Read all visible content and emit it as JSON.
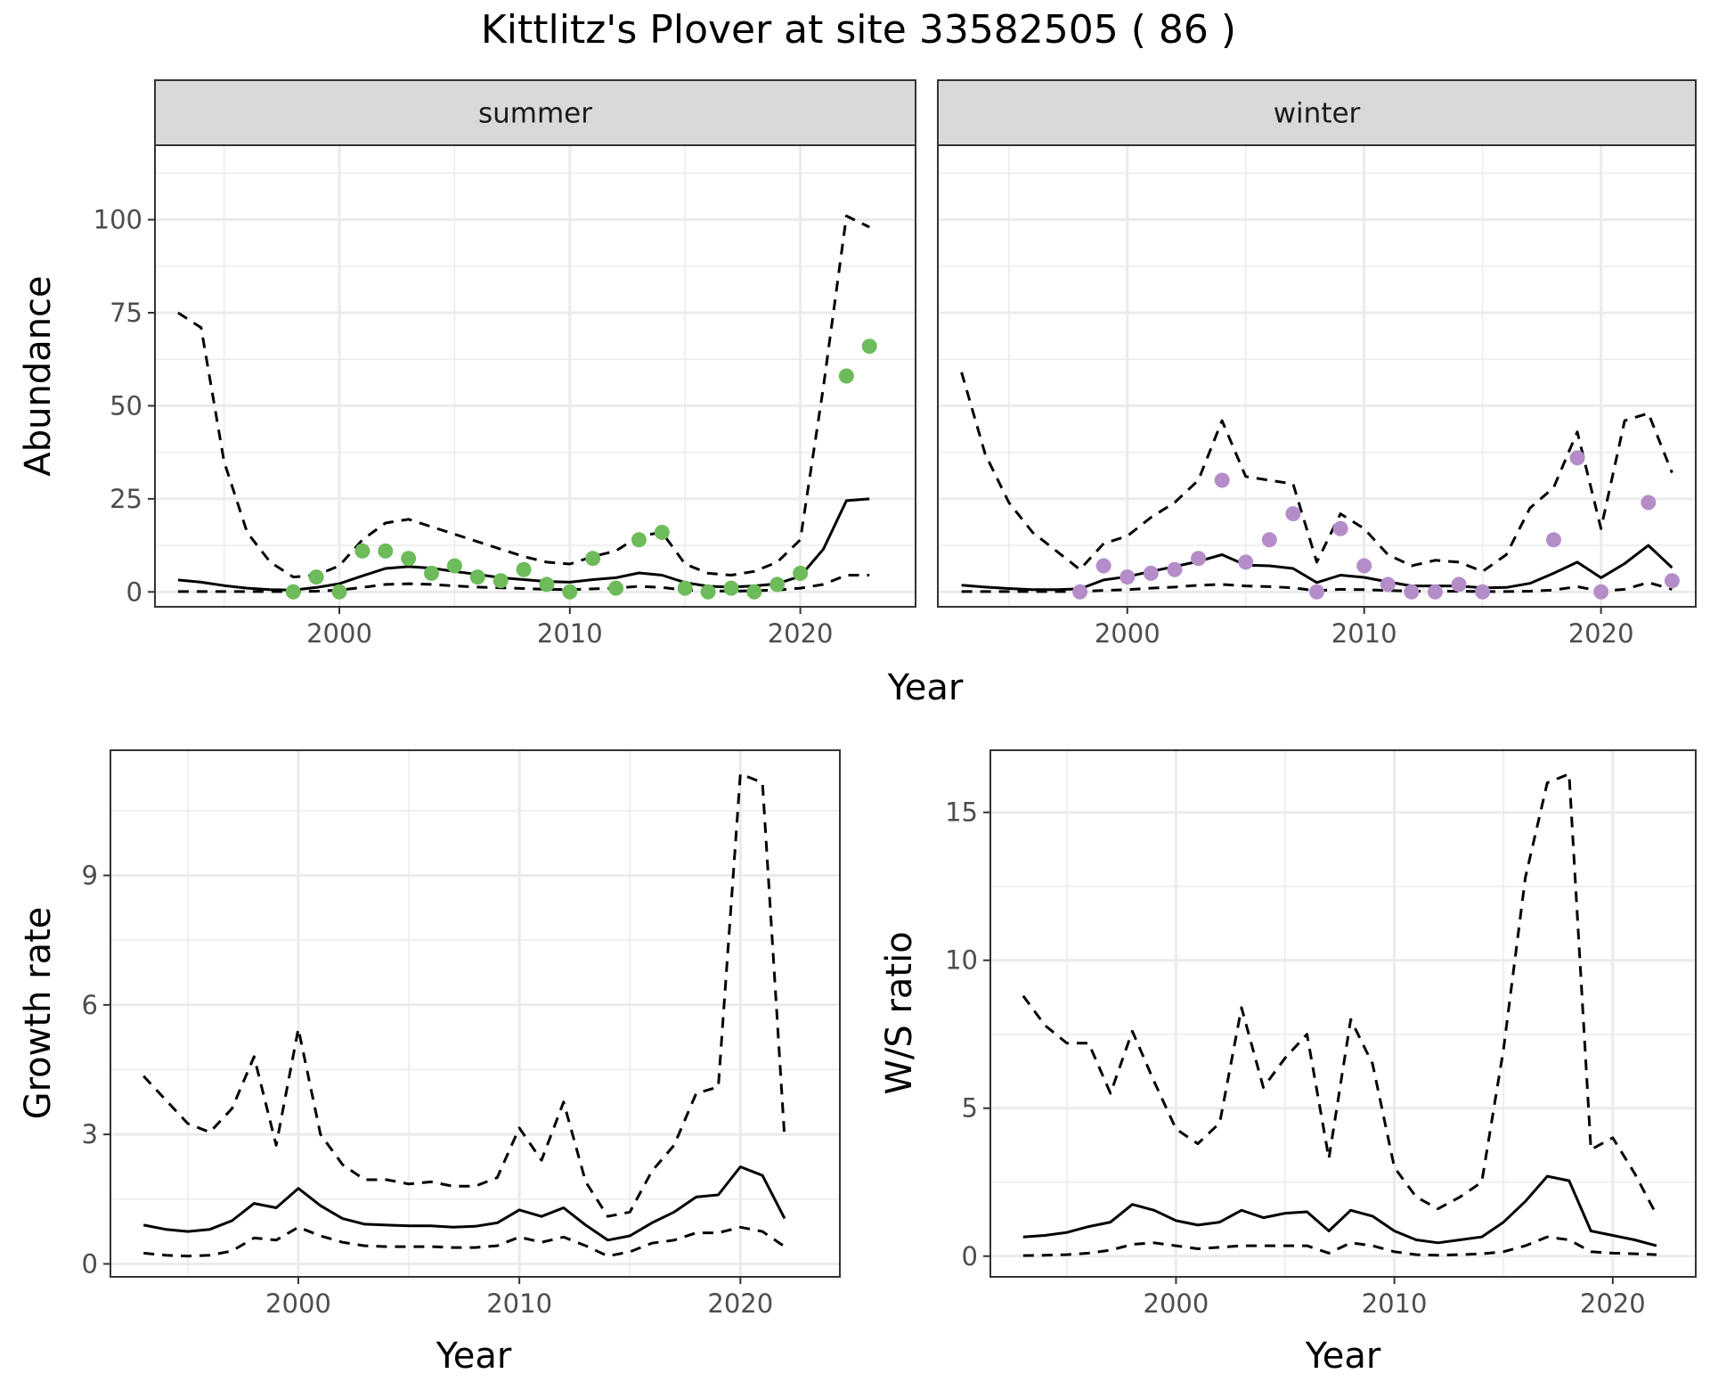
{
  "title": "Kittlitz's Plover at site 33582505 ( 86 )",
  "colors": {
    "summer_points": "#6dbb5a",
    "winter_points": "#b48dc8",
    "lines": "#000000",
    "strip_fill": "#d9d9d9",
    "grid": "#ebebeb"
  },
  "chart_data": [
    {
      "id": "abundance",
      "type": "line",
      "ylabel": "Abundance",
      "xlabel": "Year",
      "ylim": [
        -4,
        120
      ],
      "yticks": [
        0,
        25,
        50,
        75,
        100
      ],
      "xticks": [
        2000,
        2010,
        2020
      ],
      "grid": true,
      "facets": [
        {
          "strip": "summer",
          "xlim": [
            1992,
            2025
          ],
          "series": [
            {
              "style": "solid",
              "x": [
                1993,
                1994,
                1995,
                1996,
                1997,
                1998,
                1999,
                2000,
                2001,
                2002,
                2003,
                2004,
                2005,
                2006,
                2007,
                2008,
                2009,
                2010,
                2011,
                2012,
                2013,
                2014,
                2015,
                2016,
                2017,
                2018,
                2019,
                2020,
                2021,
                2022,
                2023
              ],
              "y": [
                3.2,
                2.6,
                1.7,
                1.0,
                0.6,
                0.5,
                1.2,
                2.2,
                4.3,
                6.3,
                6.8,
                6.4,
                5.5,
                4.7,
                3.8,
                3.3,
                2.8,
                2.6,
                3.3,
                3.8,
                5.1,
                4.5,
                2.5,
                1.5,
                1.3,
                1.6,
                2.2,
                4.2,
                11.5,
                24.5,
                25
              ]
            },
            {
              "style": "dashed",
              "x": [
                1993,
                1994,
                1995,
                1996,
                1997,
                1998,
                1999,
                2000,
                2001,
                2002,
                2003,
                2004,
                2005,
                2006,
                2007,
                2008,
                2009,
                2010,
                2011,
                2012,
                2013,
                2014,
                2015,
                2016,
                2017,
                2018,
                2019,
                2020,
                2021,
                2022,
                2023
              ],
              "y": [
                75,
                71,
                35,
                16,
                8,
                4,
                4.5,
                7,
                14,
                18.5,
                19.5,
                17.5,
                15.5,
                13.5,
                11.5,
                9.5,
                8,
                7.5,
                9.5,
                11,
                15,
                16,
                7.5,
                5,
                4.5,
                5.5,
                8,
                14,
                55,
                101,
                98
              ]
            },
            {
              "style": "dashed",
              "x": [
                1993,
                1994,
                1995,
                1996,
                1997,
                1998,
                1999,
                2000,
                2001,
                2002,
                2003,
                2004,
                2005,
                2006,
                2007,
                2008,
                2009,
                2010,
                2011,
                2012,
                2013,
                2014,
                2015,
                2016,
                2017,
                2018,
                2019,
                2020,
                2021,
                2022,
                2023
              ],
              "y": [
                0.1,
                0.1,
                0.1,
                0.1,
                0.1,
                0.1,
                0.2,
                0.5,
                1.2,
                2,
                2.2,
                2,
                1.6,
                1.3,
                1.1,
                0.9,
                0.7,
                0.6,
                0.8,
                1,
                1.5,
                1.2,
                0.5,
                0.3,
                0.2,
                0.3,
                0.5,
                1,
                2,
                4.5,
                4.5
              ]
            },
            {
              "style": "points",
              "name": "summer",
              "x": [
                1998,
                1999,
                2000,
                2001,
                2002,
                2003,
                2004,
                2005,
                2006,
                2007,
                2008,
                2009,
                2010,
                2011,
                2012,
                2013,
                2014,
                2015,
                2016,
                2017,
                2018,
                2019,
                2020,
                2022,
                2023
              ],
              "y": [
                0,
                4,
                0,
                11,
                11,
                9,
                5,
                7,
                4,
                3,
                6,
                2,
                0,
                9,
                1,
                14,
                16,
                1,
                0,
                1,
                0,
                2,
                5,
                58,
                66
              ]
            }
          ]
        },
        {
          "strip": "winter",
          "xlim": [
            1992,
            2024
          ],
          "series": [
            {
              "style": "solid",
              "x": [
                1993,
                1994,
                1995,
                1996,
                1997,
                1998,
                1999,
                2000,
                2001,
                2002,
                2003,
                2004,
                2005,
                2006,
                2007,
                2008,
                2009,
                2010,
                2011,
                2012,
                2013,
                2014,
                2015,
                2016,
                2017,
                2018,
                2019,
                2020,
                2021,
                2022,
                2023
              ],
              "y": [
                1.8,
                1.3,
                0.9,
                0.6,
                0.6,
                0.8,
                3.2,
                4.1,
                5.5,
                6.8,
                8.2,
                10,
                7.2,
                7,
                6.3,
                2.5,
                4.5,
                3.9,
                2.7,
                1.6,
                1.6,
                1.6,
                1.1,
                1.2,
                2.3,
                5,
                8,
                3.8,
                7.6,
                12.5,
                6.5
              ]
            },
            {
              "style": "dashed",
              "x": [
                1993,
                1994,
                1995,
                1996,
                1997,
                1998,
                1999,
                2000,
                2001,
                2002,
                2003,
                2004,
                2005,
                2006,
                2007,
                2008,
                2009,
                2010,
                2011,
                2012,
                2013,
                2014,
                2015,
                2016,
                2017,
                2018,
                2019,
                2020,
                2021,
                2022,
                2023
              ],
              "y": [
                59,
                37,
                24,
                16,
                11,
                6,
                13,
                15,
                20,
                24,
                30,
                46,
                31,
                30,
                29,
                8,
                21,
                17,
                10,
                7,
                8.5,
                8,
                5.5,
                10,
                22.5,
                28,
                43,
                17,
                46,
                48,
                32
              ]
            },
            {
              "style": "dashed",
              "x": [
                1993,
                1994,
                1995,
                1996,
                1997,
                1998,
                1999,
                2000,
                2001,
                2002,
                2003,
                2004,
                2005,
                2006,
                2007,
                2008,
                2009,
                2010,
                2011,
                2012,
                2013,
                2014,
                2015,
                2016,
                2017,
                2018,
                2019,
                2020,
                2021,
                2022,
                2023
              ],
              "y": [
                0.1,
                0.1,
                0.1,
                0.1,
                0.1,
                0.1,
                0.4,
                0.6,
                1,
                1.3,
                1.8,
                2,
                1.6,
                1.4,
                1.1,
                0.3,
                0.7,
                0.6,
                0.4,
                0.2,
                0.2,
                0.2,
                0.1,
                0.1,
                0.2,
                0.5,
                1.4,
                0.2,
                0.7,
                2.5,
                0.7
              ]
            },
            {
              "style": "points",
              "name": "winter",
              "x": [
                1998,
                1999,
                2000,
                2001,
                2002,
                2003,
                2004,
                2005,
                2006,
                2007,
                2008,
                2009,
                2010,
                2011,
                2012,
                2013,
                2014,
                2015,
                2018,
                2019,
                2020,
                2022,
                2023
              ],
              "y": [
                0,
                7,
                4,
                5,
                6,
                9,
                30,
                8,
                14,
                21,
                0,
                17,
                7,
                2,
                0,
                0,
                2,
                0,
                14,
                36,
                0,
                24,
                3
              ]
            }
          ]
        }
      ]
    },
    {
      "id": "growth",
      "type": "line",
      "ylabel": "Growth rate",
      "xlabel": "Year",
      "xlim": [
        1991.5,
        2024.5
      ],
      "ylim": [
        -0.3,
        11.9
      ],
      "yticks": [
        0,
        3,
        6,
        9
      ],
      "xticks": [
        2000,
        2010,
        2020
      ],
      "grid": true,
      "series": [
        {
          "style": "solid",
          "x": [
            1993,
            1994,
            1995,
            1996,
            1997,
            1998,
            1999,
            2000,
            2001,
            2002,
            2003,
            2004,
            2005,
            2006,
            2007,
            2008,
            2009,
            2010,
            2011,
            2012,
            2013,
            2014,
            2015,
            2016,
            2017,
            2018,
            2019,
            2020,
            2021,
            2022
          ],
          "y": [
            0.9,
            0.8,
            0.75,
            0.8,
            1.0,
            1.4,
            1.3,
            1.75,
            1.35,
            1.05,
            0.92,
            0.9,
            0.88,
            0.88,
            0.85,
            0.87,
            0.95,
            1.25,
            1.1,
            1.3,
            0.9,
            0.55,
            0.65,
            0.95,
            1.2,
            1.55,
            1.6,
            2.25,
            2.05,
            1.05
          ]
        },
        {
          "style": "dashed",
          "x": [
            1993,
            1994,
            1995,
            1996,
            1997,
            1998,
            1999,
            2000,
            2001,
            2002,
            2003,
            2004,
            2005,
            2006,
            2007,
            2008,
            2009,
            2010,
            2011,
            2012,
            2013,
            2014,
            2015,
            2016,
            2017,
            2018,
            2019,
            2020,
            2021,
            2022
          ],
          "y": [
            4.35,
            3.8,
            3.25,
            3.05,
            3.6,
            4.8,
            2.75,
            5.45,
            3.0,
            2.3,
            1.95,
            1.95,
            1.85,
            1.9,
            1.8,
            1.8,
            2.0,
            3.15,
            2.4,
            3.75,
            1.9,
            1.1,
            1.2,
            2.15,
            2.75,
            3.95,
            4.1,
            11.35,
            11.15,
            2.9
          ]
        },
        {
          "style": "dashed",
          "x": [
            1993,
            1994,
            1995,
            1996,
            1997,
            1998,
            1999,
            2000,
            2001,
            2002,
            2003,
            2004,
            2005,
            2006,
            2007,
            2008,
            2009,
            2010,
            2011,
            2012,
            2013,
            2014,
            2015,
            2016,
            2017,
            2018,
            2019,
            2020,
            2021,
            2022
          ],
          "y": [
            0.25,
            0.2,
            0.18,
            0.2,
            0.3,
            0.6,
            0.55,
            0.85,
            0.65,
            0.5,
            0.42,
            0.4,
            0.4,
            0.4,
            0.38,
            0.38,
            0.42,
            0.62,
            0.5,
            0.62,
            0.42,
            0.18,
            0.28,
            0.48,
            0.55,
            0.72,
            0.72,
            0.85,
            0.75,
            0.4
          ]
        }
      ]
    },
    {
      "id": "ws_ratio",
      "type": "line",
      "ylabel": "W/S ratio",
      "xlabel": "Year",
      "xlim": [
        1991.5,
        2023.8
      ],
      "ylim": [
        -0.7,
        17.1
      ],
      "yticks": [
        0,
        5,
        10,
        15
      ],
      "xticks": [
        2000,
        2010,
        2020
      ],
      "grid": true,
      "series": [
        {
          "style": "solid",
          "x": [
            1993,
            1994,
            1995,
            1996,
            1997,
            1998,
            1999,
            2000,
            2001,
            2002,
            2003,
            2004,
            2005,
            2006,
            2007,
            2008,
            2009,
            2010,
            2011,
            2012,
            2013,
            2014,
            2015,
            2016,
            2017,
            2018,
            2019,
            2020,
            2021,
            2022
          ],
          "y": [
            0.65,
            0.7,
            0.8,
            1.0,
            1.15,
            1.75,
            1.55,
            1.2,
            1.05,
            1.15,
            1.55,
            1.3,
            1.45,
            1.5,
            0.85,
            1.55,
            1.35,
            0.85,
            0.55,
            0.45,
            0.55,
            0.65,
            1.15,
            1.85,
            2.7,
            2.55,
            0.85,
            0.7,
            0.55,
            0.35
          ]
        },
        {
          "style": "dashed",
          "x": [
            1993,
            1994,
            1995,
            1996,
            1997,
            1998,
            1999,
            2000,
            2001,
            2002,
            2003,
            2004,
            2005,
            2006,
            2007,
            2008,
            2009,
            2010,
            2011,
            2012,
            2013,
            2014,
            2015,
            2016,
            2017,
            2018,
            2019,
            2020,
            2021,
            2022
          ],
          "y": [
            8.8,
            7.8,
            7.2,
            7.2,
            5.5,
            7.6,
            5.9,
            4.3,
            3.8,
            4.5,
            8.4,
            5.7,
            6.7,
            7.5,
            3.3,
            8.0,
            6.5,
            3.0,
            2.0,
            1.6,
            2.0,
            2.5,
            7.0,
            12.8,
            16.0,
            16.3,
            3.6,
            4.0,
            2.8,
            1.4
          ]
        },
        {
          "style": "dashed",
          "x": [
            1993,
            1994,
            1995,
            1996,
            1997,
            1998,
            1999,
            2000,
            2001,
            2002,
            2003,
            2004,
            2005,
            2006,
            2007,
            2008,
            2009,
            2010,
            2011,
            2012,
            2013,
            2014,
            2015,
            2016,
            2017,
            2018,
            2019,
            2020,
            2021,
            2022
          ],
          "y": [
            0.02,
            0.03,
            0.05,
            0.1,
            0.2,
            0.4,
            0.45,
            0.35,
            0.25,
            0.3,
            0.35,
            0.35,
            0.35,
            0.35,
            0.1,
            0.45,
            0.35,
            0.15,
            0.05,
            0.03,
            0.05,
            0.08,
            0.15,
            0.35,
            0.65,
            0.55,
            0.15,
            0.1,
            0.08,
            0.05
          ]
        }
      ]
    }
  ]
}
